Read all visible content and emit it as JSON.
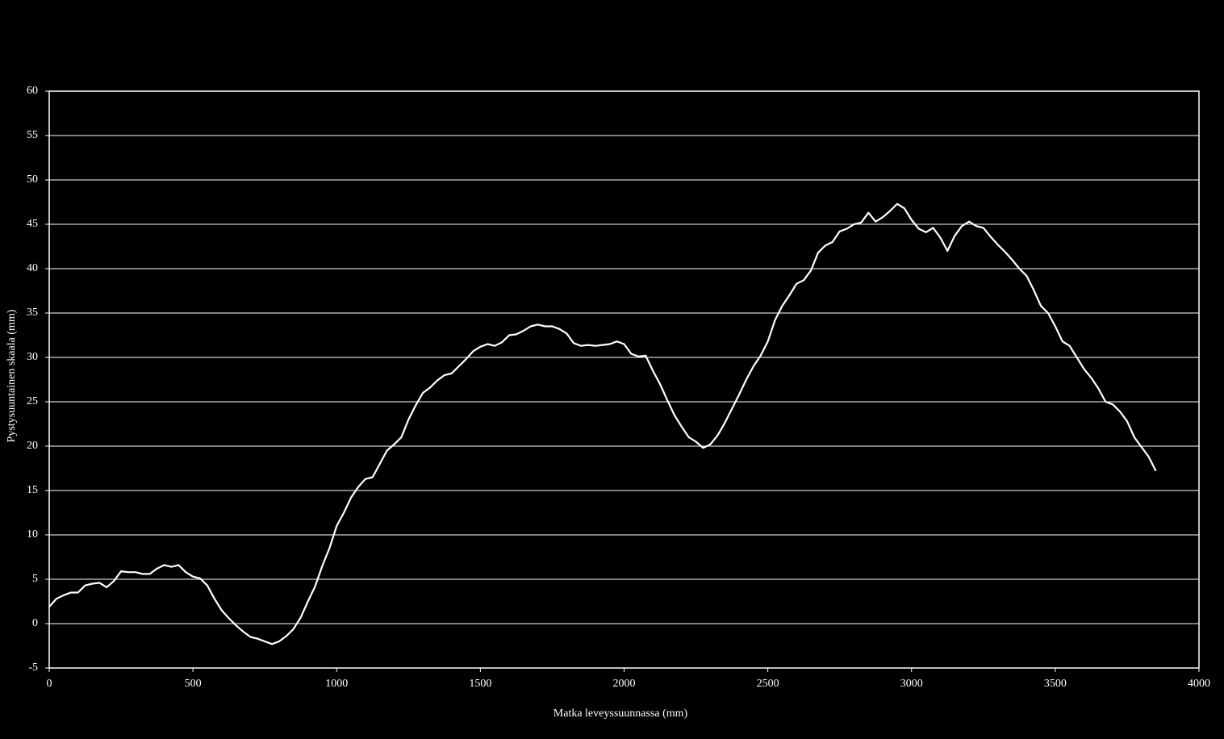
{
  "chart_data": {
    "type": "line",
    "x_label": "Matka leveyssuunnassa (mm)",
    "y_label": "Pystysuuntainen skaala (mm)",
    "x": [
      0,
      25,
      50,
      75,
      100,
      125,
      150,
      175,
      200,
      225,
      250,
      275,
      300,
      325,
      350,
      375,
      400,
      425,
      450,
      475,
      500,
      525,
      550,
      575,
      600,
      625,
      650,
      675,
      700,
      725,
      750,
      775,
      800,
      825,
      850,
      875,
      900,
      925,
      950,
      975,
      1000,
      1025,
      1050,
      1075,
      1100,
      1125,
      1150,
      1175,
      1200,
      1225,
      1250,
      1275,
      1300,
      1325,
      1350,
      1375,
      1400,
      1425,
      1450,
      1475,
      1500,
      1525,
      1550,
      1575,
      1600,
      1625,
      1650,
      1675,
      1700,
      1725,
      1750,
      1775,
      1800,
      1825,
      1850,
      1875,
      1900,
      1925,
      1950,
      1975,
      2000,
      2025,
      2050,
      2075,
      2100,
      2125,
      2150,
      2175,
      2200,
      2225,
      2250,
      2275,
      2300,
      2325,
      2350,
      2375,
      2400,
      2425,
      2450,
      2475,
      2500,
      2525,
      2550,
      2575,
      2600,
      2625,
      2650,
      2675,
      2700,
      2725,
      2750,
      2775,
      2800,
      2825,
      2850,
      2875,
      2900,
      2925,
      2950,
      2975,
      3000,
      3025,
      3050,
      3075,
      3100,
      3125,
      3150,
      3175,
      3200,
      3225,
      3250,
      3275,
      3300,
      3325,
      3350,
      3375,
      3400,
      3425,
      3450,
      3475,
      3500,
      3525,
      3550,
      3575,
      3600,
      3625,
      3650,
      3675,
      3700,
      3725,
      3750,
      3775,
      3800,
      3825,
      3850
    ],
    "values": [
      1.9,
      2.8,
      3.2,
      3.5,
      3.5,
      4.3,
      4.5,
      4.6,
      4.1,
      4.8,
      5.9,
      5.8,
      5.8,
      5.6,
      5.6,
      6.2,
      6.6,
      6.4,
      6.6,
      5.8,
      5.3,
      5.1,
      4.3,
      2.8,
      1.5,
      0.6,
      -0.2,
      -0.9,
      -1.5,
      -1.7,
      -2.0,
      -2.3,
      -2.0,
      -1.4,
      -0.6,
      0.7,
      2.5,
      4.2,
      6.5,
      8.5,
      11,
      12.5,
      14.2,
      15.4,
      16.3,
      16.5,
      18,
      19.5,
      20.2,
      21,
      23,
      24.6,
      26,
      26.6,
      27.4,
      28,
      28.2,
      29,
      29.8,
      30.7,
      31.2,
      31.5,
      31.3,
      31.7,
      32.5,
      32.6,
      33,
      33.5,
      33.7,
      33.5,
      33.5,
      33.2,
      32.7,
      31.6,
      31.3,
      31.4,
      31.3,
      31.4,
      31.5,
      31.8,
      31.5,
      30.4,
      30.1,
      30.2,
      28.5,
      27,
      25.2,
      23.5,
      22.2,
      21,
      20.5,
      19.8,
      20.2,
      21.2,
      22.6,
      24.2,
      25.8,
      27.5,
      29,
      30.2,
      31.8,
      34.2,
      35.8,
      37,
      38.3,
      38.7,
      39.8,
      41.8,
      42.6,
      43,
      44.2,
      44.5,
      45,
      45.2,
      46.3,
      45.3,
      45.8,
      46.5,
      47.3,
      46.8,
      45.5,
      44.5,
      44.1,
      44.6,
      43.5,
      42,
      43.7,
      44.8,
      45.3,
      44.8,
      44.6,
      43.6,
      42.7,
      41.9,
      41,
      40,
      39.2,
      37.6,
      35.8,
      35,
      33.5,
      31.8,
      31.3,
      30,
      28.7,
      27.7,
      26.5,
      25,
      24.7,
      23.9,
      22.8,
      21,
      19.9,
      18.8,
      17.2
    ],
    "color": "#ffffff",
    "xlim": [
      0,
      4000
    ],
    "xticks": [
      0,
      500,
      1000,
      1500,
      2000,
      2500,
      3000,
      3500,
      4000
    ],
    "ylim": [
      -5,
      60
    ],
    "yticks": [
      -5,
      0,
      5,
      10,
      15,
      20,
      25,
      30,
      35,
      40,
      45,
      50,
      55,
      60
    ],
    "grid": true
  }
}
